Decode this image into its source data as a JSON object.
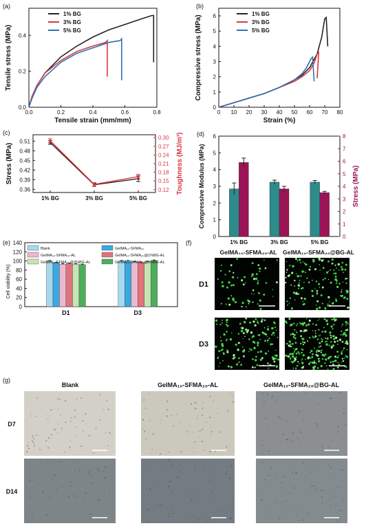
{
  "colors": {
    "black": "#222222",
    "red": "#d9363e",
    "blue": "#2f6fb5",
    "teal": "#2e8b8b",
    "maroon": "#9b1456",
    "c_blank": "#a8d8ee",
    "c_gs": "#3aa9df",
    "c_gsal": "#eab8cf",
    "c_bg1": "#e0737d",
    "c_bg3": "#c7e4b4",
    "c_bg5": "#4cae5a"
  },
  "chart_data": [
    {
      "panel": "(a)",
      "type": "line",
      "xlabel": "Tensile strain (mm/mm)",
      "ylabel": "Tensile stress (MPa)",
      "xlim": [
        0.0,
        0.8
      ],
      "ylim": [
        0.0,
        0.55
      ],
      "xticks": [
        "0.0",
        "0.2",
        "0.4",
        "0.6",
        "0.8"
      ],
      "yticks": [
        "0.0",
        "0.2",
        "0.4"
      ],
      "legend": [
        "1% BG",
        "3% BG",
        "5% BG"
      ],
      "series": [
        {
          "name": "1% BG",
          "color": "black",
          "x": [
            0,
            0.02,
            0.05,
            0.1,
            0.2,
            0.3,
            0.4,
            0.5,
            0.6,
            0.7,
            0.77,
            0.78,
            0.78
          ],
          "y": [
            0,
            0.06,
            0.12,
            0.19,
            0.28,
            0.34,
            0.39,
            0.43,
            0.46,
            0.49,
            0.51,
            0.51,
            0.25
          ]
        },
        {
          "name": "3% BG",
          "color": "red",
          "x": [
            0,
            0.02,
            0.05,
            0.1,
            0.2,
            0.3,
            0.4,
            0.48,
            0.49,
            0.49
          ],
          "y": [
            0,
            0.06,
            0.12,
            0.19,
            0.26,
            0.31,
            0.34,
            0.36,
            0.37,
            0.17
          ]
        },
        {
          "name": "5% BG",
          "color": "blue",
          "x": [
            0,
            0.02,
            0.05,
            0.1,
            0.2,
            0.3,
            0.4,
            0.5,
            0.57,
            0.58,
            0.58
          ],
          "y": [
            0,
            0.05,
            0.11,
            0.17,
            0.25,
            0.3,
            0.33,
            0.36,
            0.37,
            0.38,
            0.15
          ]
        }
      ]
    },
    {
      "panel": "(b)",
      "type": "line",
      "xlabel": "Strain (%)",
      "ylabel": "Compressive stress (MPa)",
      "xlim": [
        0,
        80
      ],
      "ylim": [
        0,
        6.5
      ],
      "xticks": [
        "0",
        "10",
        "20",
        "30",
        "40",
        "50",
        "60",
        "70",
        "80"
      ],
      "yticks": [
        "0",
        "1",
        "2",
        "3",
        "4",
        "5",
        "6"
      ],
      "legend": [
        "1% BG",
        "3% BG",
        "5% BG"
      ],
      "series": [
        {
          "name": "1% BG",
          "color": "black",
          "x": [
            0,
            10,
            20,
            30,
            40,
            50,
            55,
            60,
            65,
            68,
            70,
            71,
            72
          ],
          "y": [
            0,
            0.3,
            0.6,
            0.9,
            1.3,
            1.8,
            2.1,
            2.6,
            3.5,
            4.6,
            5.8,
            5.9,
            4.0
          ]
        },
        {
          "name": "3% BG",
          "color": "red",
          "x": [
            0,
            10,
            20,
            30,
            40,
            50,
            55,
            60,
            63,
            65,
            66,
            65
          ],
          "y": [
            0,
            0.3,
            0.6,
            0.9,
            1.3,
            1.7,
            2.0,
            2.4,
            2.9,
            3.5,
            3.6,
            1.9
          ]
        },
        {
          "name": "5% BG",
          "color": "blue",
          "x": [
            0,
            10,
            20,
            30,
            40,
            50,
            55,
            58,
            61,
            62,
            63
          ],
          "y": [
            0,
            0.3,
            0.6,
            0.9,
            1.3,
            1.8,
            2.2,
            2.6,
            3.2,
            3.3,
            1.7
          ]
        }
      ]
    },
    {
      "panel": "(c)",
      "type": "line",
      "categories": [
        "1% BG",
        "3% BG",
        "5% BG"
      ],
      "ylabel": "Stress (MPa)",
      "ylim": [
        0.35,
        0.53
      ],
      "yticks": [
        "0.36",
        "0.39",
        "0.42",
        "0.45",
        "0.48",
        "0.51"
      ],
      "y2label": "Toughness (MJ/m³)",
      "y2lim": [
        0.11,
        0.31
      ],
      "y2ticks": [
        "0.12",
        "0.15",
        "0.18",
        "0.21",
        "0.24",
        "0.27",
        "0.30"
      ],
      "series": [
        {
          "name": "Stress",
          "color": "black",
          "values": [
            0.506,
            0.374,
            0.393
          ],
          "errors": [
            0.006,
            0.005,
            0.009
          ]
        },
        {
          "name": "Toughness",
          "color": "red",
          "values": [
            0.289,
            0.138,
            0.165
          ],
          "errors": [
            0.007,
            0.006,
            0.008
          ]
        }
      ]
    },
    {
      "panel": "(d)",
      "type": "bar",
      "categories": [
        "1% BG",
        "3% BG",
        "5% BG"
      ],
      "ylabel": "Compressive Modulus (MPa)",
      "ylim": [
        0,
        6
      ],
      "yticks": [
        "0",
        "1",
        "2",
        "3",
        "4",
        "5",
        "6"
      ],
      "y2label": "Stress (MPa)",
      "y2lim": [
        0,
        8
      ],
      "y2ticks": [
        "0",
        "1",
        "2",
        "3",
        "4",
        "5",
        "6",
        "7",
        "8"
      ],
      "series": [
        {
          "name": "Compressive Modulus",
          "color": "teal",
          "values": [
            2.85,
            3.25,
            3.25
          ],
          "errors": [
            0.35,
            0.12,
            0.1
          ]
        },
        {
          "name": "Stress",
          "color": "maroon",
          "values": [
            5.9,
            3.8,
            3.5
          ],
          "errors": [
            0.35,
            0.2,
            0.1
          ]
        }
      ]
    },
    {
      "panel": "(e)",
      "type": "bar",
      "categories": [
        "D1",
        "D3"
      ],
      "ylabel": "Cell viability (%)",
      "ylim": [
        0,
        140
      ],
      "yticks": [
        "0",
        "20",
        "40",
        "60",
        "80",
        "100",
        "120",
        "140"
      ],
      "series": [
        {
          "name": "Blank",
          "color": "c_blank",
          "values": [
            100,
            100
          ],
          "errors": [
            1,
            1
          ]
        },
        {
          "name": "GelMA₁₀-SFMA₂₀",
          "color": "c_gs",
          "values": [
            96,
            100
          ],
          "errors": [
            1,
            1
          ]
        },
        {
          "name": "GelMA₁₀-SFMA₂₀-AL",
          "color": "c_gsal",
          "values": [
            93,
            98
          ],
          "errors": [
            1,
            1
          ]
        },
        {
          "name": "GelMA₁₀-SFMA₂₀@1%BG-AL",
          "color": "c_bg1",
          "values": [
            94,
            97
          ],
          "errors": [
            1,
            1
          ]
        },
        {
          "name": "GelMA₁₀-SFMA₂₀@3%BG-AL",
          "color": "c_bg3",
          "values": [
            93,
            98
          ],
          "errors": [
            1,
            1
          ]
        },
        {
          "name": "GelMA₁₀-SFMA₂₀@5%BG-AL",
          "color": "c_bg5",
          "values": [
            92,
            101
          ],
          "errors": [
            1,
            1
          ]
        }
      ]
    }
  ],
  "panel_f": {
    "label": "(f)",
    "columns": [
      "GelMA₁₀-SFMA₂₀-AL",
      "GelMA₁₀-SFMA₂₀@BG-AL"
    ],
    "rows": [
      "D1",
      "D3"
    ],
    "cell_density": [
      [
        0.25,
        0.55
      ],
      [
        0.6,
        0.95
      ]
    ]
  },
  "panel_g": {
    "label": "(g)",
    "columns": [
      "Blank",
      "GelMA₁₀-SFMA₂₀-AL",
      "GelMA₁₀-SFMA₂₀@BG-AL"
    ],
    "rows": [
      "D7",
      "D14"
    ],
    "tones": [
      [
        "#d3d0c7",
        "#cbc8bd",
        "#8b8f92"
      ],
      [
        "#7d8588",
        "#737c82",
        "#848b8f"
      ]
    ]
  }
}
